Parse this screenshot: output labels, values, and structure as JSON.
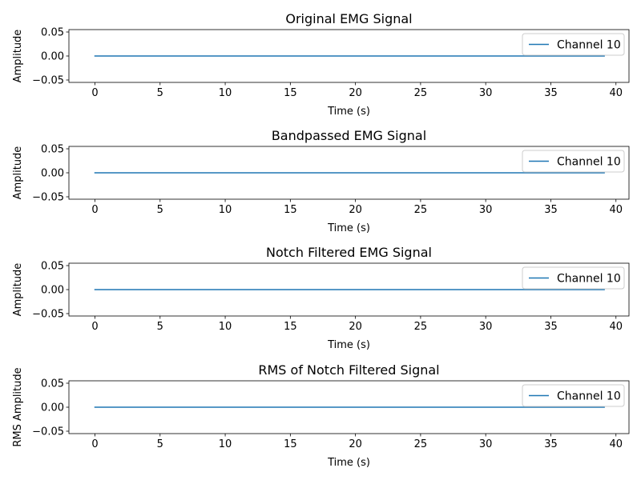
{
  "chart_data": [
    {
      "type": "line",
      "title": "Original EMG Signal",
      "xlabel": "Time (s)",
      "ylabel": "Amplitude",
      "xlim": [
        -2,
        41
      ],
      "ylim": [
        -0.055,
        0.055
      ],
      "xticks": [
        0,
        5,
        10,
        15,
        20,
        25,
        30,
        35,
        40
      ],
      "xtick_labels": [
        "0",
        "5",
        "10",
        "15",
        "20",
        "25",
        "30",
        "35",
        "40"
      ],
      "yticks": [
        -0.05,
        0.0,
        0.05
      ],
      "ytick_labels": [
        "−0.05",
        "0.00",
        "0.05"
      ],
      "grid": false,
      "legend_position": "top-right",
      "series": [
        {
          "name": "Channel 10",
          "color": "#1f77b4",
          "x": [
            0,
            39.1
          ],
          "y": [
            0,
            0
          ]
        }
      ]
    },
    {
      "type": "line",
      "title": "Bandpassed EMG Signal",
      "xlabel": "Time (s)",
      "ylabel": "Amplitude",
      "xlim": [
        -2,
        41
      ],
      "ylim": [
        -0.055,
        0.055
      ],
      "xticks": [
        0,
        5,
        10,
        15,
        20,
        25,
        30,
        35,
        40
      ],
      "xtick_labels": [
        "0",
        "5",
        "10",
        "15",
        "20",
        "25",
        "30",
        "35",
        "40"
      ],
      "yticks": [
        -0.05,
        0.0,
        0.05
      ],
      "ytick_labels": [
        "−0.05",
        "0.00",
        "0.05"
      ],
      "grid": false,
      "legend_position": "top-right",
      "series": [
        {
          "name": "Channel 10",
          "color": "#1f77b4",
          "x": [
            0,
            39.1
          ],
          "y": [
            0,
            0
          ]
        }
      ]
    },
    {
      "type": "line",
      "title": "Notch Filtered EMG Signal",
      "xlabel": "Time (s)",
      "ylabel": "Amplitude",
      "xlim": [
        -2,
        41
      ],
      "ylim": [
        -0.055,
        0.055
      ],
      "xticks": [
        0,
        5,
        10,
        15,
        20,
        25,
        30,
        35,
        40
      ],
      "xtick_labels": [
        "0",
        "5",
        "10",
        "15",
        "20",
        "25",
        "30",
        "35",
        "40"
      ],
      "yticks": [
        -0.05,
        0.0,
        0.05
      ],
      "ytick_labels": [
        "−0.05",
        "0.00",
        "0.05"
      ],
      "grid": false,
      "legend_position": "top-right",
      "series": [
        {
          "name": "Channel 10",
          "color": "#1f77b4",
          "x": [
            0,
            39.1
          ],
          "y": [
            0,
            0
          ]
        }
      ]
    },
    {
      "type": "line",
      "title": "RMS of Notch Filtered Signal",
      "xlabel": "Time (s)",
      "ylabel": "RMS Amplitude",
      "xlim": [
        -2,
        41
      ],
      "ylim": [
        -0.055,
        0.055
      ],
      "xticks": [
        0,
        5,
        10,
        15,
        20,
        25,
        30,
        35,
        40
      ],
      "xtick_labels": [
        "0",
        "5",
        "10",
        "15",
        "20",
        "25",
        "30",
        "35",
        "40"
      ],
      "yticks": [
        -0.05,
        0.0,
        0.05
      ],
      "ytick_labels": [
        "−0.05",
        "0.00",
        "0.05"
      ],
      "grid": false,
      "legend_position": "top-right",
      "series": [
        {
          "name": "Channel 10",
          "color": "#1f77b4",
          "x": [
            0,
            39.1
          ],
          "y": [
            0,
            0
          ]
        }
      ]
    }
  ]
}
